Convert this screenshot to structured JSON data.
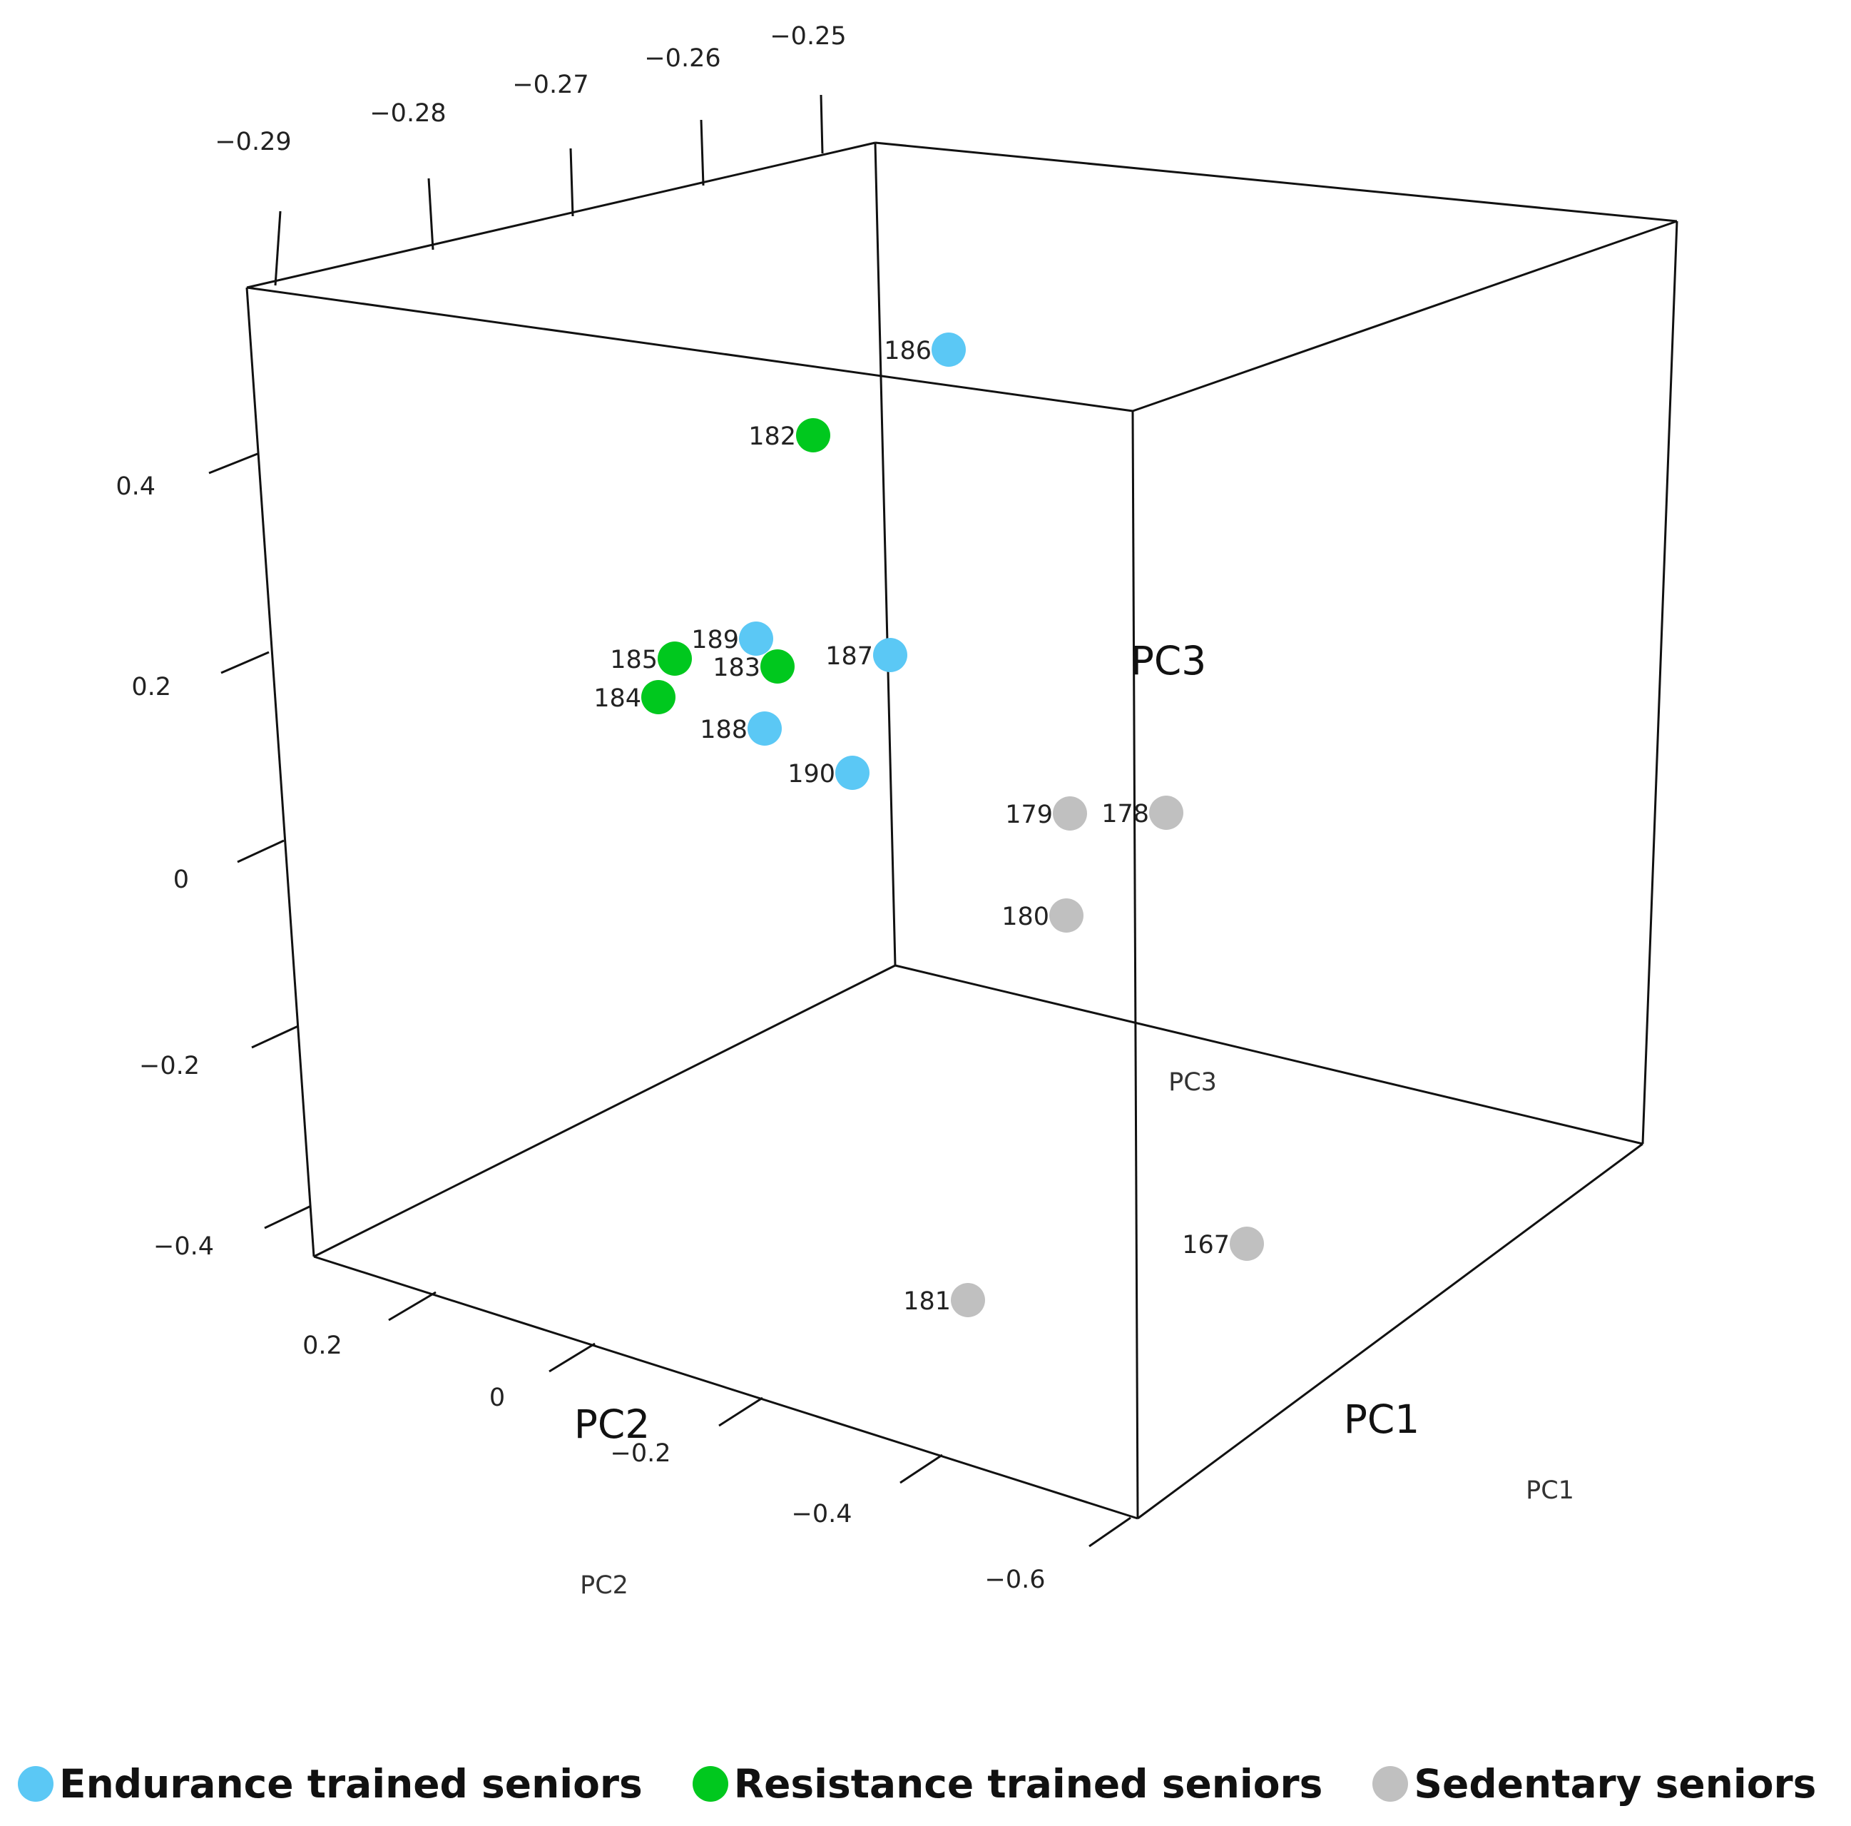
{
  "chart_data": {
    "type": "scatter",
    "projection": "3d",
    "title": "",
    "axes": {
      "x": {
        "name": "PC1",
        "labels": [
          "PC1",
          "PC1"
        ],
        "ticks": []
      },
      "y": {
        "name": "PC2",
        "labels": [
          "PC2",
          "PC2"
        ],
        "ticks": [
          "0.2",
          "0",
          "−0.2",
          "−0.4",
          "−0.6"
        ]
      },
      "z": {
        "name": "PC3",
        "labels": [
          "PC3",
          "PC3"
        ],
        "ticks": [
          "0.4",
          "0.2",
          "0",
          "−0.2",
          "−0.4"
        ]
      },
      "top": {
        "ticks": [
          "−0.29",
          "−0.28",
          "−0.27",
          "−0.26",
          "−0.25"
        ]
      }
    },
    "grid": false,
    "legend_position": "bottom",
    "colors": {
      "endurance": "#5bc8f5",
      "resistance": "#00c81e",
      "sedentary": "#c0c0c0"
    },
    "series": [
      {
        "name": "Endurance trained seniors",
        "color": "#5bc8f5",
        "points": [
          "186",
          "189",
          "187",
          "188",
          "190"
        ]
      },
      {
        "name": "Resistance trained seniors",
        "color": "#00c81e",
        "points": [
          "182",
          "185",
          "183",
          "184"
        ]
      },
      {
        "name": "Sedentary seniors",
        "color": "#c0c0c0",
        "points": [
          "179",
          "178",
          "180",
          "167",
          "181"
        ]
      }
    ]
  }
}
